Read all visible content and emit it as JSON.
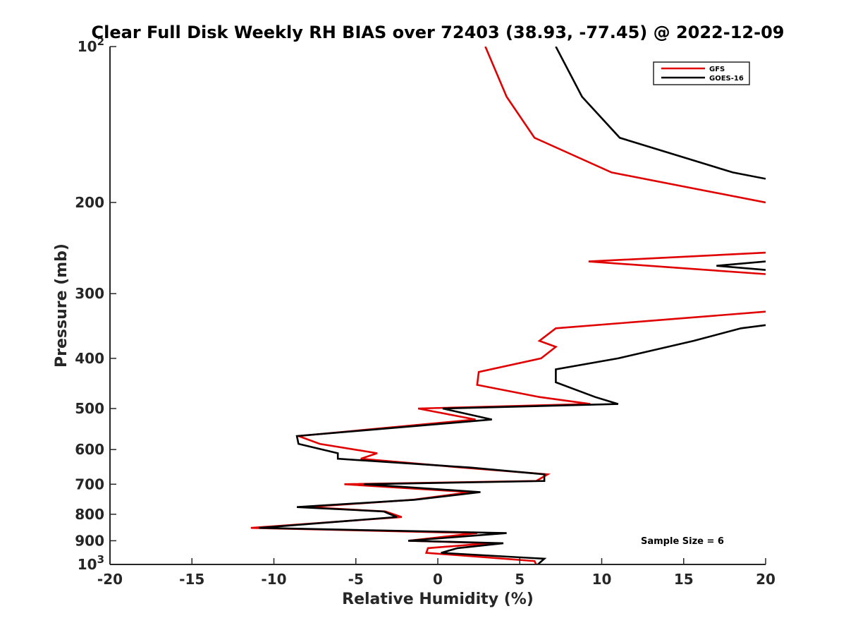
{
  "chart_data": {
    "type": "line",
    "title": "Clear Full Disk Weekly RH BIAS over 72403 (38.93, -77.45) @ 2022-12-09",
    "xlabel": "Relative Humidity (%)",
    "ylabel": "Pressure (mb)",
    "xlim": [
      -20,
      20
    ],
    "ylim": [
      100,
      1000
    ],
    "y_scale": "log",
    "y_reversed": true,
    "grid": false,
    "x_ticks": [
      "-20",
      "-15",
      "-10",
      "-5",
      "0",
      "5",
      "10",
      "15",
      "20"
    ],
    "y_ticks": [
      {
        "value": 100,
        "base": "10",
        "exp": "2"
      },
      {
        "value": 200,
        "base": "200",
        "exp": ""
      },
      {
        "value": 300,
        "base": "300",
        "exp": ""
      },
      {
        "value": 400,
        "base": "400",
        "exp": ""
      },
      {
        "value": 500,
        "base": "500",
        "exp": ""
      },
      {
        "value": 600,
        "base": "600",
        "exp": ""
      },
      {
        "value": 700,
        "base": "700",
        "exp": ""
      },
      {
        "value": 800,
        "base": "800",
        "exp": ""
      },
      {
        "value": 900,
        "base": "900",
        "exp": ""
      },
      {
        "value": 1000,
        "base": "10",
        "exp": "3"
      }
    ],
    "legend_placement": "top-right",
    "annotation": "Sample Size = 6",
    "series": [
      {
        "name": "GFS",
        "color": "#e00000",
        "segments": [
          [
            {
              "x": 2.9,
              "y": 100
            },
            {
              "x": 4.2,
              "y": 125
            },
            {
              "x": 5.9,
              "y": 150
            },
            {
              "x": 10.6,
              "y": 175
            },
            {
              "x": 20,
              "y": 200
            }
          ],
          [
            {
              "x": 20,
              "y": 250
            },
            {
              "x": 9.2,
              "y": 260
            },
            {
              "x": 20,
              "y": 275
            }
          ],
          [
            {
              "x": 20,
              "y": 325
            },
            {
              "x": 7.2,
              "y": 350
            },
            {
              "x": 6.2,
              "y": 370
            },
            {
              "x": 7.2,
              "y": 380
            },
            {
              "x": 6.3,
              "y": 400
            },
            {
              "x": 2.5,
              "y": 425
            },
            {
              "x": 2.4,
              "y": 450
            },
            {
              "x": 6.2,
              "y": 475
            },
            {
              "x": 9.3,
              "y": 490
            },
            {
              "x": -1.2,
              "y": 500
            },
            {
              "x": 2.3,
              "y": 525
            },
            {
              "x": -8.5,
              "y": 565
            },
            {
              "x": -7.2,
              "y": 585
            },
            {
              "x": -3.7,
              "y": 610
            },
            {
              "x": -4.7,
              "y": 625
            },
            {
              "x": 1.5,
              "y": 650
            },
            {
              "x": 6.7,
              "y": 670
            },
            {
              "x": 6.0,
              "y": 690
            },
            {
              "x": -5.7,
              "y": 700
            },
            {
              "x": 2.0,
              "y": 725
            },
            {
              "x": -1.5,
              "y": 750
            },
            {
              "x": -8.0,
              "y": 775
            },
            {
              "x": -3.2,
              "y": 790
            },
            {
              "x": -2.2,
              "y": 810
            },
            {
              "x": -11.4,
              "y": 850
            },
            {
              "x": 2.4,
              "y": 870
            },
            {
              "x": -1.8,
              "y": 900
            },
            {
              "x": 3.2,
              "y": 910
            },
            {
              "x": -0.6,
              "y": 930
            },
            {
              "x": -0.7,
              "y": 950
            },
            {
              "x": 2.2,
              "y": 965
            },
            {
              "x": 5.9,
              "y": 985
            },
            {
              "x": 6.0,
              "y": 1000
            }
          ]
        ]
      },
      {
        "name": "GOES-16",
        "color": "#000000",
        "segments": [
          [
            {
              "x": 7.2,
              "y": 100
            },
            {
              "x": 8.8,
              "y": 125
            },
            {
              "x": 11.1,
              "y": 150
            },
            {
              "x": 18.0,
              "y": 175
            },
            {
              "x": 20,
              "y": 180
            }
          ],
          [
            {
              "x": 20,
              "y": 260
            },
            {
              "x": 17.0,
              "y": 265
            },
            {
              "x": 20,
              "y": 270
            }
          ],
          [
            {
              "x": 20,
              "y": 345
            },
            {
              "x": 18.5,
              "y": 350
            },
            {
              "x": 15.6,
              "y": 370
            },
            {
              "x": 11.0,
              "y": 400
            },
            {
              "x": 7.2,
              "y": 420
            },
            {
              "x": 7.2,
              "y": 445
            },
            {
              "x": 9.6,
              "y": 475
            },
            {
              "x": 11.0,
              "y": 490
            },
            {
              "x": 0.3,
              "y": 500
            },
            {
              "x": 3.3,
              "y": 525
            },
            {
              "x": -8.6,
              "y": 565
            },
            {
              "x": -8.5,
              "y": 585
            },
            {
              "x": -6.1,
              "y": 610
            },
            {
              "x": -6.1,
              "y": 625
            },
            {
              "x": 2.0,
              "y": 650
            },
            {
              "x": 6.5,
              "y": 670
            },
            {
              "x": 6.5,
              "y": 690
            },
            {
              "x": -4.5,
              "y": 700
            },
            {
              "x": 2.6,
              "y": 725
            },
            {
              "x": -1.4,
              "y": 750
            },
            {
              "x": -8.6,
              "y": 775
            },
            {
              "x": -3.3,
              "y": 790
            },
            {
              "x": -2.5,
              "y": 810
            },
            {
              "x": -10.9,
              "y": 850
            },
            {
              "x": 4.2,
              "y": 870
            },
            {
              "x": -1.8,
              "y": 900
            },
            {
              "x": 4.0,
              "y": 910
            },
            {
              "x": 1.2,
              "y": 930
            },
            {
              "x": 0.2,
              "y": 950
            },
            {
              "x": 6.5,
              "y": 975
            },
            {
              "x": 6.1,
              "y": 1000
            }
          ]
        ]
      }
    ]
  }
}
